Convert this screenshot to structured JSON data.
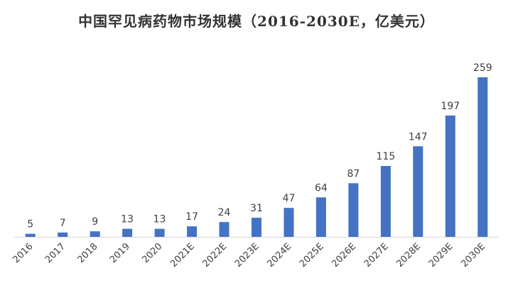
{
  "chart_data": {
    "type": "bar",
    "title": "中国罕见病药物市场规模（2016-2030E，亿美元）",
    "xlabel": "",
    "ylabel": "",
    "categories": [
      "2016",
      "2017",
      "2018",
      "2019",
      "2020",
      "2021E",
      "2022E",
      "2023E",
      "2024E",
      "2025E",
      "2026E",
      "2027E",
      "2028E",
      "2029E",
      "2030E"
    ],
    "values": [
      5,
      7,
      9,
      13,
      13,
      17,
      24,
      31,
      47,
      64,
      87,
      115,
      147,
      197,
      259
    ],
    "ylim": [
      0,
      259
    ],
    "grid": false,
    "legend": "none",
    "data_labels": true,
    "colors": {
      "bar": "#4472C4",
      "axis": "#D9D9D9",
      "text": "#404040",
      "title": "#333333"
    }
  }
}
